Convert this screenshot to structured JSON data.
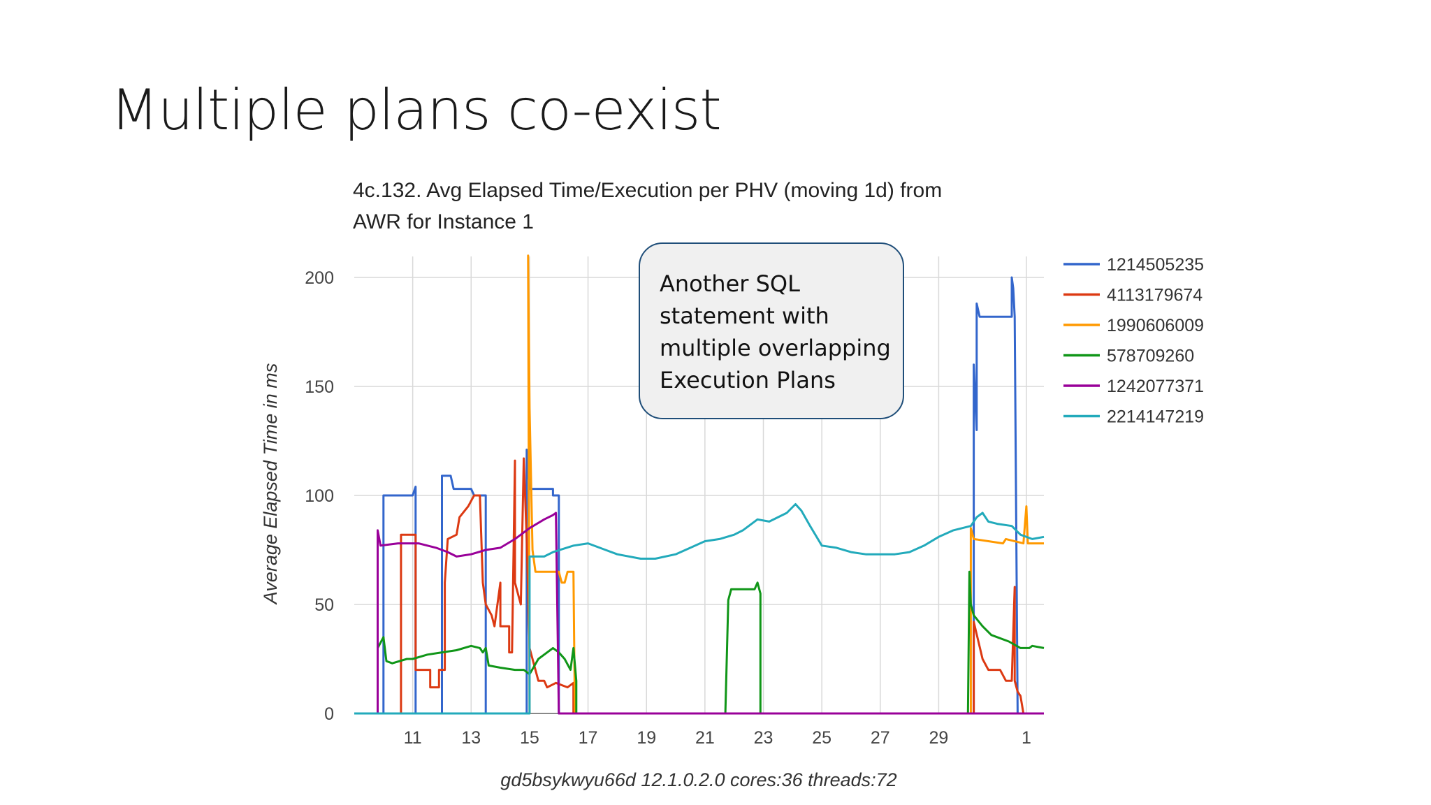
{
  "slide": {
    "title": "Multiple plans co-exist"
  },
  "callout": {
    "lines": [
      "Another SQL",
      "statement with",
      "multiple overlapping",
      "Execution Plans"
    ]
  },
  "chart_data": {
    "type": "line",
    "title_lines": [
      "4c.132. Avg Elapsed Time/Execution per PHV (moving 1d) from",
      "AWR for Instance 1"
    ],
    "ylabel": "Average Elapsed Time in ms",
    "xlabel": "gd5bsykwyu66d 12.1.0.2.0 cores:36 threads:72",
    "ylim": [
      0,
      200
    ],
    "yticks": [
      0,
      50,
      100,
      150,
      200
    ],
    "xlim": [
      9,
      1.6
    ],
    "x_tick_labels": [
      "11",
      "13",
      "15",
      "17",
      "19",
      "21",
      "23",
      "25",
      "27",
      "29",
      "1"
    ],
    "grid": true,
    "legend_position": "right",
    "series": [
      {
        "name": "1214505235",
        "color": "#3366cc",
        "points": [
          [
            9,
            0
          ],
          [
            10,
            0
          ],
          [
            10,
            100
          ],
          [
            11,
            100
          ],
          [
            11.1,
            104
          ],
          [
            11.1,
            0
          ],
          [
            12,
            0
          ],
          [
            12,
            109
          ],
          [
            12.3,
            109
          ],
          [
            12.4,
            103
          ],
          [
            13,
            103
          ],
          [
            13.1,
            100
          ],
          [
            13.3,
            100
          ],
          [
            13.5,
            100
          ],
          [
            13.5,
            0
          ],
          [
            14.9,
            0
          ],
          [
            14.9,
            121
          ],
          [
            15,
            103
          ],
          [
            15.8,
            103
          ],
          [
            15.8,
            100
          ],
          [
            16,
            100
          ],
          [
            16,
            0
          ],
          [
            30.2,
            0
          ],
          [
            30.2,
            160
          ],
          [
            30.3,
            130
          ],
          [
            30.3,
            188
          ],
          [
            30.4,
            182
          ],
          [
            31.5,
            182
          ],
          [
            31.5,
            200
          ],
          [
            31.55,
            195
          ],
          [
            31.6,
            182
          ],
          [
            31.7,
            0
          ],
          [
            32.6,
            0
          ]
        ]
      },
      {
        "name": "4113179674",
        "color": "#dc3912",
        "points": [
          [
            9,
            0
          ],
          [
            10.6,
            0
          ],
          [
            10.6,
            82
          ],
          [
            11.1,
            82
          ],
          [
            11.1,
            20
          ],
          [
            11.6,
            20
          ],
          [
            11.6,
            12
          ],
          [
            11.9,
            12
          ],
          [
            11.9,
            20
          ],
          [
            12.1,
            20
          ],
          [
            12.1,
            60
          ],
          [
            12.2,
            80
          ],
          [
            12.5,
            82
          ],
          [
            12.6,
            90
          ],
          [
            12.9,
            95
          ],
          [
            13.1,
            100
          ],
          [
            13.3,
            100
          ],
          [
            13.4,
            60
          ],
          [
            13.5,
            50
          ],
          [
            13.7,
            45
          ],
          [
            13.8,
            40
          ],
          [
            14,
            60
          ],
          [
            14,
            40
          ],
          [
            14.3,
            40
          ],
          [
            14.3,
            28
          ],
          [
            14.4,
            28
          ],
          [
            14.5,
            116
          ],
          [
            14.5,
            60
          ],
          [
            14.7,
            50
          ],
          [
            14.8,
            117
          ],
          [
            14.9,
            80
          ],
          [
            15,
            30
          ],
          [
            15.2,
            20
          ],
          [
            15.3,
            15
          ],
          [
            15.5,
            15
          ],
          [
            15.6,
            12
          ],
          [
            15.9,
            14
          ],
          [
            16.3,
            12
          ],
          [
            16.5,
            14
          ],
          [
            16.5,
            0
          ],
          [
            30.2,
            0
          ],
          [
            30.2,
            42
          ],
          [
            30.5,
            25
          ],
          [
            30.7,
            20
          ],
          [
            31.1,
            20
          ],
          [
            31.3,
            15
          ],
          [
            31.5,
            15
          ],
          [
            31.6,
            58
          ],
          [
            31.6,
            15
          ],
          [
            31.7,
            10
          ],
          [
            31.8,
            8
          ],
          [
            31.9,
            0
          ],
          [
            32.6,
            0
          ]
        ]
      },
      {
        "name": "1990606009",
        "color": "#ff9900",
        "points": [
          [
            9,
            0
          ],
          [
            15,
            0
          ],
          [
            14.95,
            210
          ],
          [
            15,
            140
          ],
          [
            15.1,
            75
          ],
          [
            15.2,
            65
          ],
          [
            16,
            65
          ],
          [
            16.1,
            60
          ],
          [
            16.2,
            60
          ],
          [
            16.3,
            65
          ],
          [
            16.5,
            65
          ],
          [
            16.55,
            0
          ],
          [
            30.1,
            0
          ],
          [
            30.1,
            85
          ],
          [
            30.2,
            80
          ],
          [
            31.2,
            78
          ],
          [
            31.3,
            80
          ],
          [
            31.9,
            78
          ],
          [
            32,
            95
          ],
          [
            32.05,
            78
          ],
          [
            32.6,
            78
          ]
        ]
      },
      {
        "name": "578709260",
        "color": "#109618",
        "points": [
          [
            9,
            0
          ],
          [
            9.8,
            0
          ],
          [
            9.8,
            30
          ],
          [
            10,
            35
          ],
          [
            10.1,
            24
          ],
          [
            10.3,
            23
          ],
          [
            10.8,
            25
          ],
          [
            11,
            25
          ],
          [
            11.5,
            27
          ],
          [
            12,
            28
          ],
          [
            12.5,
            29
          ],
          [
            13,
            31
          ],
          [
            13.3,
            30
          ],
          [
            13.4,
            28
          ],
          [
            13.5,
            30
          ],
          [
            13.6,
            22
          ],
          [
            14,
            21
          ],
          [
            14.5,
            20
          ],
          [
            14.8,
            20
          ],
          [
            15,
            18
          ],
          [
            15.3,
            25
          ],
          [
            15.8,
            30
          ],
          [
            16,
            28
          ],
          [
            16.2,
            25
          ],
          [
            16.4,
            20
          ],
          [
            16.5,
            30
          ],
          [
            16.6,
            15
          ],
          [
            16.6,
            0
          ],
          [
            21.7,
            0
          ],
          [
            21.8,
            52
          ],
          [
            21.9,
            57
          ],
          [
            22.4,
            57
          ],
          [
            22.7,
            57
          ],
          [
            22.8,
            60
          ],
          [
            22.9,
            55
          ],
          [
            22.9,
            0
          ],
          [
            30,
            0
          ],
          [
            30.05,
            65
          ],
          [
            30.1,
            50
          ],
          [
            30.2,
            45
          ],
          [
            30.5,
            40
          ],
          [
            30.8,
            36
          ],
          [
            31,
            35
          ],
          [
            31.4,
            33
          ],
          [
            31.8,
            30
          ],
          [
            32.1,
            30
          ],
          [
            32.2,
            31
          ],
          [
            32.6,
            30
          ]
        ]
      },
      {
        "name": "1242077371",
        "color": "#990099",
        "points": [
          [
            9,
            0
          ],
          [
            9.8,
            0
          ],
          [
            9.8,
            84
          ],
          [
            9.9,
            77
          ],
          [
            10.5,
            78
          ],
          [
            11.2,
            78
          ],
          [
            11.8,
            76
          ],
          [
            12.2,
            74
          ],
          [
            12.5,
            72
          ],
          [
            13,
            73
          ],
          [
            13.5,
            75
          ],
          [
            14,
            76
          ],
          [
            14.5,
            80
          ],
          [
            15,
            85
          ],
          [
            15.5,
            89
          ],
          [
            15.8,
            91
          ],
          [
            15.9,
            92
          ],
          [
            16,
            0
          ],
          [
            30.1,
            0
          ],
          [
            32.6,
            0
          ]
        ]
      },
      {
        "name": "2214147219",
        "color": "#22aabb",
        "points": [
          [
            9,
            0
          ],
          [
            15,
            0
          ],
          [
            15,
            72
          ],
          [
            15.5,
            72
          ],
          [
            15.8,
            74
          ],
          [
            16.5,
            77
          ],
          [
            17,
            78
          ],
          [
            17.6,
            75
          ],
          [
            18,
            73
          ],
          [
            18.8,
            71
          ],
          [
            19.3,
            71
          ],
          [
            20,
            73
          ],
          [
            20.5,
            76
          ],
          [
            21,
            79
          ],
          [
            21.5,
            80
          ],
          [
            22,
            82
          ],
          [
            22.3,
            84
          ],
          [
            22.8,
            89
          ],
          [
            23.2,
            88
          ],
          [
            23.8,
            92
          ],
          [
            24.1,
            96
          ],
          [
            24.3,
            93
          ],
          [
            24.6,
            86
          ],
          [
            25,
            77
          ],
          [
            25.5,
            76
          ],
          [
            26,
            74
          ],
          [
            26.5,
            73
          ],
          [
            27,
            73
          ],
          [
            27.5,
            73
          ],
          [
            28,
            74
          ],
          [
            28.5,
            77
          ],
          [
            29,
            81
          ],
          [
            29.5,
            84
          ],
          [
            30.1,
            86
          ],
          [
            30.3,
            90
          ],
          [
            30.5,
            92
          ],
          [
            30.7,
            88
          ],
          [
            31,
            87
          ],
          [
            31.5,
            86
          ],
          [
            31.8,
            82
          ],
          [
            32.2,
            80
          ],
          [
            32.6,
            81
          ]
        ]
      }
    ]
  }
}
